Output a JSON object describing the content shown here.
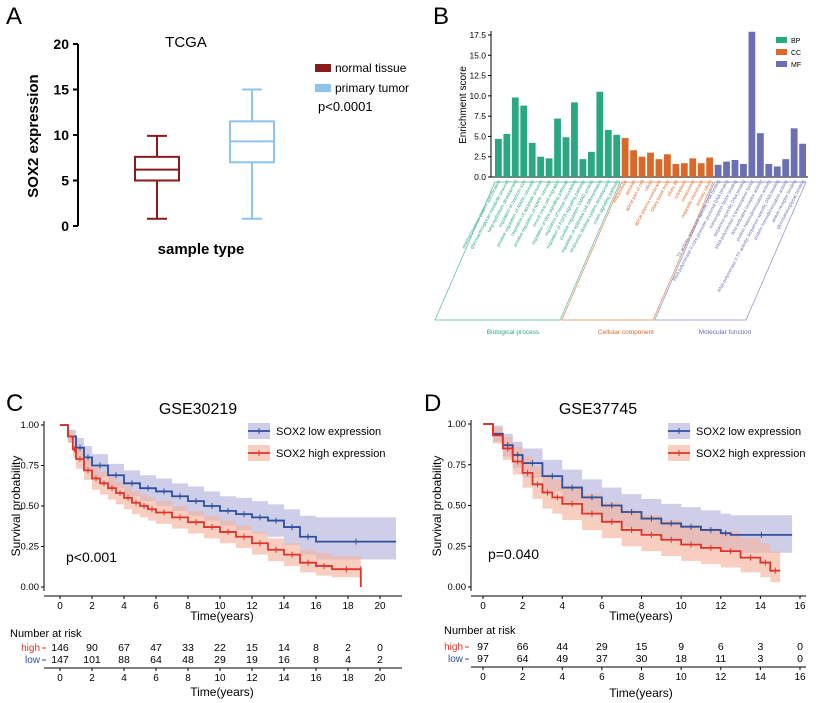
{
  "panels": {
    "a": "A",
    "b": "B",
    "c": "C",
    "d": "D"
  },
  "chart_data": [
    {
      "type": "box",
      "panel": "A",
      "title": "TCGA",
      "xlabel": "sample type",
      "ylabel": "SOX2 expression",
      "ylim": [
        0,
        20
      ],
      "yticks": [
        0,
        5,
        10,
        15,
        20
      ],
      "pvalue": "p<0.0001",
      "groups": [
        {
          "name": "normal tissue",
          "color": "#8b1a1a",
          "min": 0.8,
          "q1": 5.0,
          "median": 6.2,
          "q3": 7.6,
          "max": 9.9
        },
        {
          "name": "primary tumor",
          "color": "#8ec3ee",
          "min": 0.8,
          "q1": 7.0,
          "median": 9.3,
          "q3": 11.5,
          "max": 15.0
        }
      ]
    },
    {
      "type": "bar",
      "panel": "B",
      "ylabel": "Enrichment score",
      "ylim": [
        0,
        17.5
      ],
      "yticks": [
        "0.0",
        "2.5",
        "5.0",
        "7.5",
        "10.0",
        "12.5",
        "15.0",
        "17.5"
      ],
      "legend": [
        {
          "name": "BP",
          "color": "#2aa881"
        },
        {
          "name": "CC",
          "color": "#d9692a"
        },
        {
          "name": "MF",
          "color": "#6c6fb3"
        }
      ],
      "series": [
        {
          "name": "BP",
          "group_label": "Biological process",
          "values": [
            4.7,
            5.3,
            9.8,
            8.8,
            4.2,
            2.5,
            2.3,
            7.2,
            4.9,
            9.2,
            2.2,
            3.1,
            10.5,
            5.8,
            5.2
          ],
          "terms": [
            "anterior/posterior pattern specification",
            "glycosaminoglycan metabolic process",
            "lung epithelium development",
            "regulation of nephron size",
            "positive regulation of MAPK cascade",
            "regulation of apoptotic process",
            "positive regulation of MAPK cascade",
            "neural crest cell migration",
            "regulation of Wnt signaling pathway",
            "regulation of tissue remodeling",
            "regulation of FGFR signaling pathway",
            "positive regulation SMAD protein",
            "regulation of epithelial cell differentiation",
            "embryonic skeletal system development",
            "notch signaling pathway"
          ]
        },
        {
          "name": "CC",
          "group_label": "Cellular component",
          "values": [
            4.8,
            3.3,
            2.5,
            3.0,
            2.2,
            2.8,
            1.6,
            1.7,
            2.3,
            1.7,
            2.4
          ],
          "terms": [
            "extracellular",
            "dendrite",
            "apical part of cell",
            "cilium",
            "apical plasma membrane",
            "ciliary basal body",
            "ciliary tip",
            "cytoplasm",
            "centrosome",
            "organelle membrane",
            "primary cilium"
          ]
        },
        {
          "name": "MF",
          "group_label": "Molecular function",
          "values": [
            1.5,
            1.9,
            2.1,
            1.6,
            17.9,
            5.4,
            1.6,
            1.3,
            2.2,
            6.0,
            4.1
          ],
          "terms": [
            "TF activity, sequence-specific DNA binding",
            "RNA polymerase II core promoter proximal DNA binding",
            "transcription factor binding",
            "sequence-specific DNA binding",
            "RNA polymerase II transcription factor",
            "Wnt-activated receptor activity",
            "protein heterodimerization activity",
            "RNA polymerase II TF activity, sequence-specific DNA binding",
            "protein homodimerization activity",
            "activin receptor binding",
            "glycosaminoglycan binding"
          ]
        }
      ]
    },
    {
      "type": "line",
      "panel": "C",
      "title": "GSE30219",
      "xlabel": "Time(years)",
      "ylabel": "Survival probability",
      "xlim": [
        0,
        21
      ],
      "ylim": [
        0,
        1
      ],
      "xticks": [
        0,
        2,
        4,
        6,
        8,
        10,
        12,
        14,
        16,
        18,
        20
      ],
      "yticks": [
        "0.00",
        "0.25",
        "0.50",
        "0.75",
        "1.00"
      ],
      "pvalue": "p<0.001",
      "risk_title": "Number at risk",
      "series": [
        {
          "name": "SOX2 low expression",
          "risk_label": "low",
          "color": "#2f4e9c",
          "band": "#b5b3dd",
          "x": [
            0,
            0.5,
            1,
            1.5,
            2,
            3,
            4,
            5,
            6,
            7,
            8,
            9,
            10,
            11,
            12,
            13,
            14,
            15,
            16,
            21
          ],
          "y": [
            1.0,
            0.93,
            0.86,
            0.8,
            0.75,
            0.69,
            0.64,
            0.61,
            0.59,
            0.56,
            0.53,
            0.5,
            0.47,
            0.45,
            0.43,
            0.41,
            0.37,
            0.31,
            0.28,
            0.28
          ],
          "lower": [
            1.0,
            0.89,
            0.8,
            0.73,
            0.68,
            0.61,
            0.56,
            0.53,
            0.5,
            0.47,
            0.44,
            0.41,
            0.38,
            0.35,
            0.33,
            0.31,
            0.26,
            0.2,
            0.17,
            0.17
          ],
          "upper": [
            1.0,
            0.97,
            0.92,
            0.87,
            0.82,
            0.76,
            0.72,
            0.69,
            0.67,
            0.64,
            0.62,
            0.59,
            0.56,
            0.55,
            0.53,
            0.51,
            0.48,
            0.44,
            0.43,
            0.43
          ],
          "risk": [
            147,
            101,
            88,
            64,
            48,
            29,
            19,
            16,
            8,
            4,
            2
          ]
        },
        {
          "name": "SOX2 high expression",
          "risk_label": "high",
          "color": "#e0342b",
          "band": "#f2b49e",
          "x": [
            0,
            0.5,
            0.8,
            1,
            1.5,
            2,
            2.5,
            3,
            3.5,
            4,
            4.5,
            5,
            5.5,
            6,
            7,
            8,
            9,
            10,
            11,
            12,
            13,
            14,
            15,
            16,
            17,
            18.8,
            18.8
          ],
          "y": [
            1.0,
            0.93,
            0.85,
            0.79,
            0.72,
            0.67,
            0.64,
            0.61,
            0.58,
            0.55,
            0.52,
            0.5,
            0.48,
            0.46,
            0.43,
            0.4,
            0.37,
            0.34,
            0.31,
            0.27,
            0.23,
            0.2,
            0.15,
            0.13,
            0.11,
            0.11,
            0.0
          ],
          "lower": [
            1.0,
            0.89,
            0.8,
            0.73,
            0.66,
            0.6,
            0.57,
            0.54,
            0.51,
            0.48,
            0.45,
            0.43,
            0.41,
            0.39,
            0.36,
            0.33,
            0.3,
            0.27,
            0.24,
            0.2,
            0.16,
            0.13,
            0.09,
            0.07,
            0.06,
            0.06,
            0.0
          ],
          "upper": [
            1.0,
            0.97,
            0.9,
            0.85,
            0.78,
            0.74,
            0.71,
            0.68,
            0.65,
            0.62,
            0.59,
            0.57,
            0.55,
            0.53,
            0.5,
            0.47,
            0.44,
            0.41,
            0.38,
            0.34,
            0.3,
            0.27,
            0.23,
            0.21,
            0.19,
            0.19,
            0.19
          ],
          "risk": [
            146,
            90,
            67,
            47,
            33,
            22,
            15,
            14,
            8,
            2,
            0
          ]
        }
      ]
    },
    {
      "type": "line",
      "panel": "D",
      "title": "GSE37745",
      "xlabel": "Time(years)",
      "ylabel": "Survival probability",
      "xlim": [
        0,
        16
      ],
      "ylim": [
        0,
        1
      ],
      "xticks": [
        0,
        2,
        4,
        6,
        8,
        10,
        12,
        14,
        16
      ],
      "yticks": [
        "0.00",
        "0.25",
        "0.50",
        "0.75",
        "1.00"
      ],
      "pvalue": "p=0.040",
      "risk_title": "Number at risk",
      "series": [
        {
          "name": "SOX2 low expression",
          "risk_label": "low",
          "color": "#2f4e9c",
          "band": "#b5b3dd",
          "x": [
            0,
            0.5,
            1,
            1.5,
            2,
            3,
            4,
            5,
            6,
            7,
            8,
            9,
            10,
            11,
            12,
            12.5,
            15.6
          ],
          "y": [
            1.0,
            0.94,
            0.87,
            0.81,
            0.76,
            0.68,
            0.61,
            0.55,
            0.5,
            0.46,
            0.42,
            0.39,
            0.37,
            0.35,
            0.33,
            0.32,
            0.32
          ],
          "lower": [
            1.0,
            0.89,
            0.8,
            0.73,
            0.67,
            0.59,
            0.52,
            0.45,
            0.4,
            0.36,
            0.32,
            0.28,
            0.26,
            0.24,
            0.22,
            0.21,
            0.21
          ],
          "upper": [
            1.0,
            0.99,
            0.94,
            0.89,
            0.85,
            0.78,
            0.72,
            0.66,
            0.61,
            0.57,
            0.54,
            0.51,
            0.49,
            0.47,
            0.45,
            0.44,
            0.44
          ],
          "risk": [
            97,
            64,
            49,
            37,
            30,
            18,
            11,
            3,
            0
          ]
        },
        {
          "name": "SOX2 high expression",
          "risk_label": "high",
          "color": "#e0342b",
          "band": "#f2b49e",
          "x": [
            0,
            0.5,
            1,
            1.5,
            2,
            2.5,
            3,
            3.5,
            4,
            5,
            6,
            7,
            8,
            9,
            10,
            11,
            12,
            13,
            14,
            14.5,
            15
          ],
          "y": [
            1.0,
            0.93,
            0.85,
            0.77,
            0.7,
            0.63,
            0.58,
            0.55,
            0.51,
            0.45,
            0.4,
            0.35,
            0.32,
            0.29,
            0.26,
            0.24,
            0.22,
            0.18,
            0.15,
            0.1,
            0.1
          ],
          "lower": [
            1.0,
            0.88,
            0.78,
            0.69,
            0.61,
            0.54,
            0.48,
            0.45,
            0.41,
            0.35,
            0.3,
            0.25,
            0.22,
            0.19,
            0.16,
            0.14,
            0.12,
            0.09,
            0.06,
            0.03,
            0.03
          ],
          "upper": [
            1.0,
            0.98,
            0.92,
            0.86,
            0.8,
            0.74,
            0.69,
            0.66,
            0.62,
            0.57,
            0.52,
            0.47,
            0.44,
            0.41,
            0.38,
            0.36,
            0.34,
            0.3,
            0.27,
            0.22,
            0.22
          ],
          "risk": [
            97,
            66,
            44,
            29,
            15,
            9,
            6,
            3,
            0
          ]
        }
      ]
    }
  ]
}
